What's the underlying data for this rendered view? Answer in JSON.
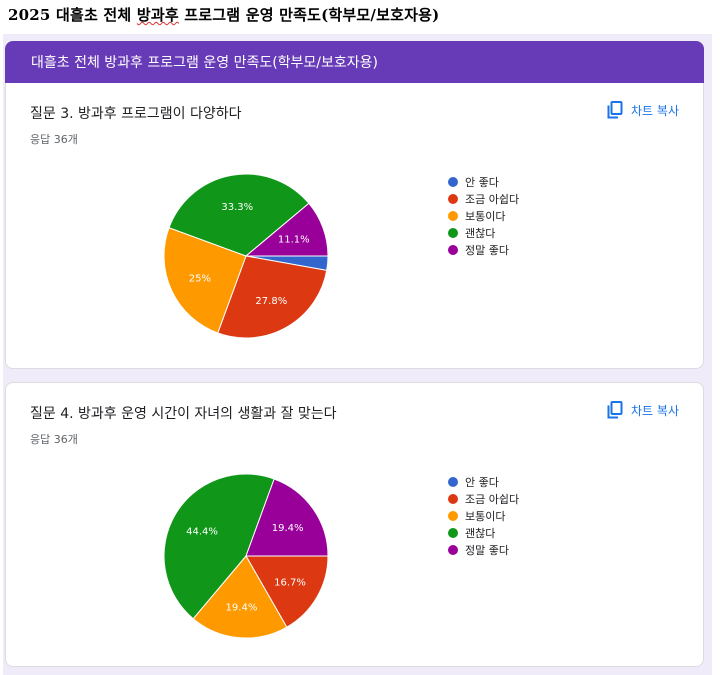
{
  "document": {
    "title_prefix": "2025 대흘초 전체 ",
    "title_underlined": "방과후",
    "title_suffix": " 프로그램 운영 만족도(학부모/보호자용)"
  },
  "header": {
    "title": "대흘초 전체 방과후 프로그램 운영 만족도(학부모/보호자용)"
  },
  "copy_label": "차트 복사",
  "questions": [
    {
      "title": "질문 3.  방과후 프로그램이 다양하다",
      "responses": "응답 36개",
      "legend": [
        "안 좋다",
        "조금 아쉽다",
        "보통이다",
        "괜찮다",
        "정말 좋다"
      ],
      "slice_labels": [
        "",
        "27.8%",
        "25%",
        "33.3%",
        "11.1%"
      ]
    },
    {
      "title": "질문 4. 방과후 운영 시간이 자녀의 생활과 잘 맞는다",
      "responses": "응답 36개",
      "legend": [
        "안 좋다",
        "조금 아쉽다",
        "보통이다",
        "괜찮다",
        "정말 좋다"
      ],
      "slice_labels": [
        "",
        "16.7%",
        "19.4%",
        "44.4%",
        "19.4%"
      ]
    }
  ],
  "colors": {
    "accent": "#673ab7",
    "link": "#1a73e8",
    "slices": [
      "#3366cc",
      "#dc3912",
      "#ff9900",
      "#109618",
      "#990099"
    ]
  },
  "chart_data": [
    {
      "type": "pie",
      "categories": [
        "안 좋다",
        "조금 아쉽다",
        "보통이다",
        "괜찮다",
        "정말 좋다"
      ],
      "values": [
        2.8,
        27.8,
        25.0,
        33.3,
        11.1
      ],
      "legend": "right"
    },
    {
      "type": "pie",
      "categories": [
        "안 좋다",
        "조금 아쉽다",
        "보통이다",
        "괜찮다",
        "정말 좋다"
      ],
      "values": [
        0,
        16.7,
        19.4,
        44.4,
        19.4
      ],
      "legend": "right"
    }
  ]
}
